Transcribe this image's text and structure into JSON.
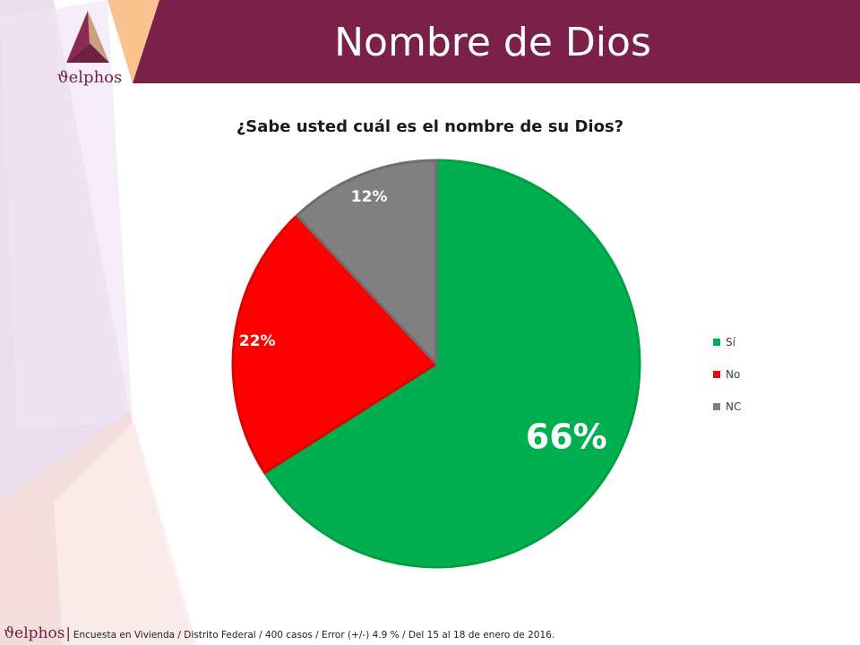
{
  "header": {
    "title": "Nombre de Dios"
  },
  "logo": {
    "text": "ϑelphos"
  },
  "chart_data": {
    "type": "pie",
    "title": "¿Sabe usted cuál es el nombre de su Dios?",
    "categories": [
      "Sí",
      "No",
      "NC"
    ],
    "values": [
      66,
      22,
      12
    ],
    "labels": [
      "66%",
      "22%",
      "12%"
    ],
    "colors": [
      "#00b050",
      "#ff0000",
      "#808080"
    ],
    "legend_position": "right"
  },
  "footer": {
    "logo": "ϑelphos",
    "separator": "|",
    "text": "Encuesta en Vivienda / Distrito Federal / 400 casos / Error (+/-) 4.9 % / Del 15 al 18 de enero de 2016."
  },
  "colors": {
    "header_band": "#7b2149",
    "accent_peach": "#f8c38f",
    "deco_lavender": "#e6d3ea",
    "deco_pink": "#f5dcdc"
  }
}
